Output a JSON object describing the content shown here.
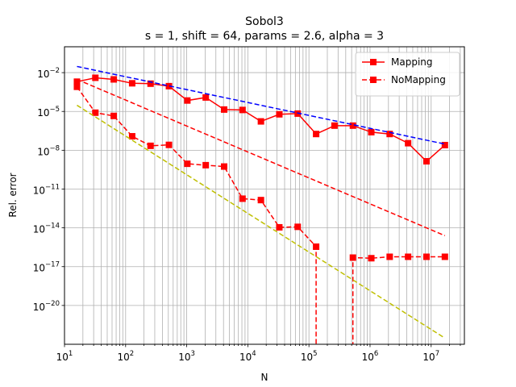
{
  "chart_data": {
    "type": "line",
    "title_line1": "Sobol3",
    "title_line2": "s = 1, shift = 64, params = 2.6, alpha = 3",
    "xlabel": "N",
    "ylabel": "Rel. error",
    "xscale": "log",
    "yscale": "log",
    "xlim": [
      10,
      35000000
    ],
    "ylim": [
      1e-23,
      1
    ],
    "xticks": [
      {
        "base": "10",
        "exp": "1",
        "value": 10
      },
      {
        "base": "10",
        "exp": "2",
        "value": 100
      },
      {
        "base": "10",
        "exp": "3",
        "value": 1000
      },
      {
        "base": "10",
        "exp": "4",
        "value": 10000
      },
      {
        "base": "10",
        "exp": "5",
        "value": 100000
      },
      {
        "base": "10",
        "exp": "6",
        "value": 1000000
      },
      {
        "base": "10",
        "exp": "7",
        "value": 10000000
      }
    ],
    "yticks": [
      {
        "base": "10",
        "exp": "−2",
        "value": 0.01
      },
      {
        "base": "10",
        "exp": "−5",
        "value": 1e-05
      },
      {
        "base": "10",
        "exp": "−8",
        "value": 1e-08
      },
      {
        "base": "10",
        "exp": "−11",
        "value": 1e-11
      },
      {
        "base": "10",
        "exp": "−14",
        "value": 1e-14
      },
      {
        "base": "10",
        "exp": "−17",
        "value": 1e-17
      },
      {
        "base": "10",
        "exp": "−20",
        "value": 1e-20
      }
    ],
    "grid": "x major and minor, y major",
    "legend_position": "top-right",
    "series": [
      {
        "name": "Mapping",
        "color": "#ff0000",
        "linestyle": "solid",
        "marker": "square",
        "x": [
          16,
          32,
          64,
          128,
          256,
          512,
          1024,
          2048,
          4096,
          8192,
          16384,
          32768,
          65536,
          131072,
          262144,
          524288,
          1048576,
          2097152,
          4194304,
          8388608,
          16777216
        ],
        "y": [
          0.002,
          0.004,
          0.003,
          0.0015,
          0.0014,
          0.0009,
          7e-05,
          0.00012,
          1.4e-05,
          1.3e-05,
          1.7e-06,
          6e-06,
          6.8e-06,
          1.8e-07,
          8e-07,
          8e-07,
          2.5e-07,
          1.8e-07,
          3.5e-08,
          1.4e-09,
          2.5e-08
        ]
      },
      {
        "name": "NoMapping",
        "color": "#ff0000",
        "linestyle": "dashed",
        "marker": "square",
        "x": [
          16,
          32,
          64,
          128,
          256,
          512,
          1024,
          2048,
          4096,
          8192,
          16384,
          32768,
          65536,
          131072,
          131072,
          524288,
          524288,
          1048576,
          2097152,
          4194304,
          8388608,
          16777216
        ],
        "y": [
          0.0008,
          8e-06,
          4.5e-06,
          1.2e-07,
          2.2e-08,
          2.6e-08,
          9e-10,
          7e-10,
          5.5e-10,
          1.8e-12,
          1.4e-12,
          1.1e-14,
          1.2e-14,
          3.5e-16,
          1e-24,
          1e-24,
          5e-17,
          4.5e-17,
          5.8e-17,
          5.8e-17,
          5.8e-17,
          5.8e-17
        ]
      },
      {
        "name": "",
        "color": "#0000ff",
        "linestyle": "dashed",
        "marker": "none",
        "x": [
          16,
          16777216
        ],
        "y": [
          0.03,
          3e-08
        ]
      },
      {
        "name": "",
        "color": "#ff0000",
        "linestyle": "dashed",
        "marker": "none",
        "x": [
          16,
          16777216
        ],
        "y": [
          0.003,
          2.5e-15
        ]
      },
      {
        "name": "",
        "color": "#bfbf00",
        "linestyle": "dashed",
        "marker": "none",
        "x": [
          16,
          16777216
        ],
        "y": [
          3e-05,
          3e-23
        ]
      }
    ]
  }
}
